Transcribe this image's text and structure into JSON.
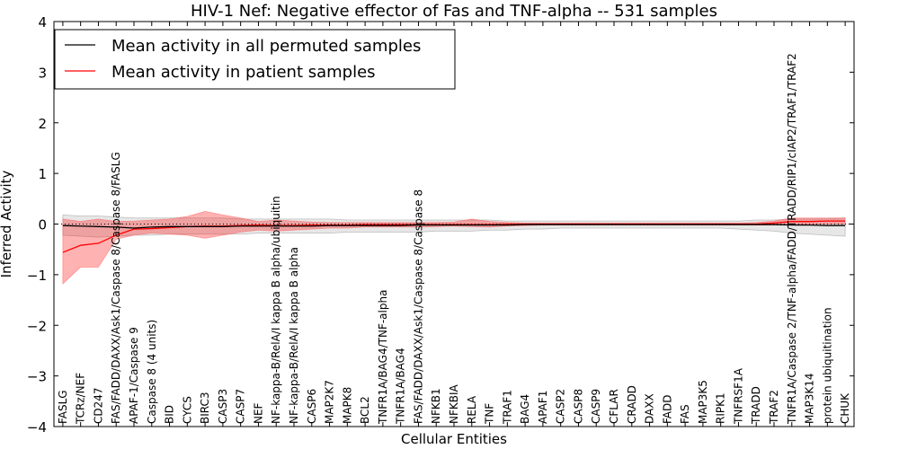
{
  "chart_data": {
    "type": "line",
    "title": "HIV-1 Nef: Negative effector of Fas and TNF-alpha -- 531 samples",
    "xlabel": "Cellular Entities",
    "ylabel": "Inferred Activity",
    "ylim": [
      -4,
      4
    ],
    "yticks": [
      -4,
      -3,
      -2,
      -1,
      0,
      1,
      2,
      3,
      4
    ],
    "ytick_labels": [
      "−4",
      "−3",
      "−2",
      "−1",
      "0",
      "1",
      "2",
      "3",
      "4"
    ],
    "grid": false,
    "legend_position": "top-left",
    "reference_line": {
      "y": 0,
      "style": "dotted"
    },
    "categories": [
      "FASLG",
      "TCRz/NEF",
      "CD247",
      "FAS/FADD/DAXX/Ask1/Caspase 8/Caspase 8/FASLG",
      "APAF-1/Caspase 9",
      "Caspase 8 (4 units)",
      "BID",
      "CYCS",
      "BIRC3",
      "CASP3",
      "CASP7",
      "NEF",
      "NF-kappa-B/RelA/I kappa B alpha/ubiquitin",
      "NF-kappa-B/RelA/I kappa B alpha",
      "CASP6",
      "MAP2K7",
      "MAPK8",
      "BCL2",
      "TNFR1A/BAG4/TNF-alpha",
      "TNFR1A/BAG4",
      "FAS/FADD/DAXX/Ask1/Caspase 8/Caspase 8",
      "NFKB1",
      "NFKBIA",
      "RELA",
      "TNF",
      "TRAF1",
      "BAG4",
      "APAF1",
      "CASP2",
      "CASP8",
      "CASP9",
      "CFLAR",
      "CRADD",
      "DAXX",
      "FADD",
      "FAS",
      "MAP3K5",
      "RIPK1",
      "TNFRSF1A",
      "TRADD",
      "TRAF2",
      "TNFR1A/Caspase 2/TNF-alpha/FADD/TRADD/RIP1/cIAP2/TRAF1/TRAF2",
      "MAP3K14",
      "protein ubiquitination",
      "CHUK"
    ],
    "series": [
      {
        "name": "Mean activity in all permuted samples",
        "color": "#000000",
        "values": [
          -0.03,
          -0.04,
          -0.05,
          -0.06,
          -0.08,
          -0.06,
          -0.05,
          -0.05,
          -0.05,
          -0.05,
          -0.04,
          -0.04,
          -0.04,
          -0.04,
          -0.04,
          -0.03,
          -0.03,
          -0.03,
          -0.03,
          -0.03,
          -0.02,
          -0.02,
          -0.02,
          -0.02,
          -0.02,
          -0.02,
          -0.01,
          -0.01,
          -0.01,
          -0.01,
          -0.01,
          -0.01,
          -0.01,
          -0.01,
          -0.01,
          -0.01,
          -0.01,
          -0.01,
          -0.01,
          -0.01,
          -0.01,
          -0.02,
          -0.02,
          -0.03,
          -0.03
        ],
        "band_low": [
          -0.22,
          -0.24,
          -0.26,
          -0.24,
          -0.22,
          -0.22,
          -0.2,
          -0.2,
          -0.2,
          -0.2,
          -0.2,
          -0.18,
          -0.18,
          -0.18,
          -0.18,
          -0.18,
          -0.16,
          -0.16,
          -0.16,
          -0.16,
          -0.16,
          -0.14,
          -0.14,
          -0.14,
          -0.12,
          -0.12,
          -0.1,
          -0.1,
          -0.08,
          -0.08,
          -0.08,
          -0.08,
          -0.08,
          -0.08,
          -0.08,
          -0.08,
          -0.08,
          -0.08,
          -0.1,
          -0.12,
          -0.14,
          -0.18,
          -0.2,
          -0.22,
          -0.24
        ],
        "band_high": [
          0.18,
          0.16,
          0.16,
          0.14,
          0.12,
          0.12,
          0.12,
          0.12,
          0.12,
          0.12,
          0.1,
          0.1,
          0.1,
          0.1,
          0.1,
          0.1,
          0.08,
          0.08,
          0.08,
          0.08,
          0.08,
          0.08,
          0.08,
          0.08,
          0.08,
          0.06,
          0.06,
          0.06,
          0.06,
          0.06,
          0.06,
          0.06,
          0.06,
          0.06,
          0.06,
          0.06,
          0.06,
          0.06,
          0.06,
          0.08,
          0.08,
          0.1,
          0.1,
          0.1,
          0.12
        ]
      },
      {
        "name": "Mean activity in patient samples",
        "color": "#ff0000",
        "values": [
          -0.56,
          -0.42,
          -0.38,
          -0.22,
          -0.1,
          -0.09,
          -0.07,
          -0.05,
          -0.04,
          -0.04,
          -0.03,
          -0.02,
          -0.03,
          -0.03,
          -0.02,
          -0.02,
          -0.02,
          -0.01,
          -0.01,
          -0.01,
          -0.01,
          -0.01,
          -0.01,
          -0.01,
          -0.01,
          0.0,
          0.0,
          0.0,
          0.0,
          0.0,
          0.0,
          0.0,
          0.0,
          0.0,
          0.0,
          0.0,
          0.0,
          0.0,
          0.0,
          0.0,
          0.02,
          0.05,
          0.05,
          0.06,
          0.06
        ],
        "band_low": [
          -1.18,
          -0.85,
          -0.85,
          -0.3,
          -0.22,
          -0.18,
          -0.2,
          -0.22,
          -0.28,
          -0.22,
          -0.16,
          -0.12,
          -0.14,
          -0.12,
          -0.1,
          -0.08,
          -0.08,
          -0.06,
          -0.06,
          -0.06,
          -0.06,
          -0.05,
          -0.04,
          -0.05,
          -0.06,
          -0.04,
          -0.03,
          -0.02,
          -0.02,
          -0.02,
          -0.02,
          -0.02,
          -0.02,
          -0.02,
          -0.02,
          -0.02,
          -0.02,
          -0.02,
          -0.02,
          -0.02,
          -0.02,
          -0.01,
          0.0,
          0.0,
          0.0
        ],
        "band_high": [
          0.1,
          0.05,
          0.1,
          0.05,
          0.06,
          0.08,
          0.1,
          0.15,
          0.25,
          0.18,
          0.12,
          0.05,
          0.08,
          0.06,
          0.04,
          0.03,
          0.03,
          0.03,
          0.03,
          0.03,
          0.03,
          0.03,
          0.04,
          0.1,
          0.05,
          0.03,
          0.02,
          0.02,
          0.02,
          0.02,
          0.02,
          0.02,
          0.02,
          0.02,
          0.02,
          0.02,
          0.02,
          0.02,
          0.02,
          0.03,
          0.06,
          0.12,
          0.12,
          0.12,
          0.12
        ]
      }
    ]
  }
}
